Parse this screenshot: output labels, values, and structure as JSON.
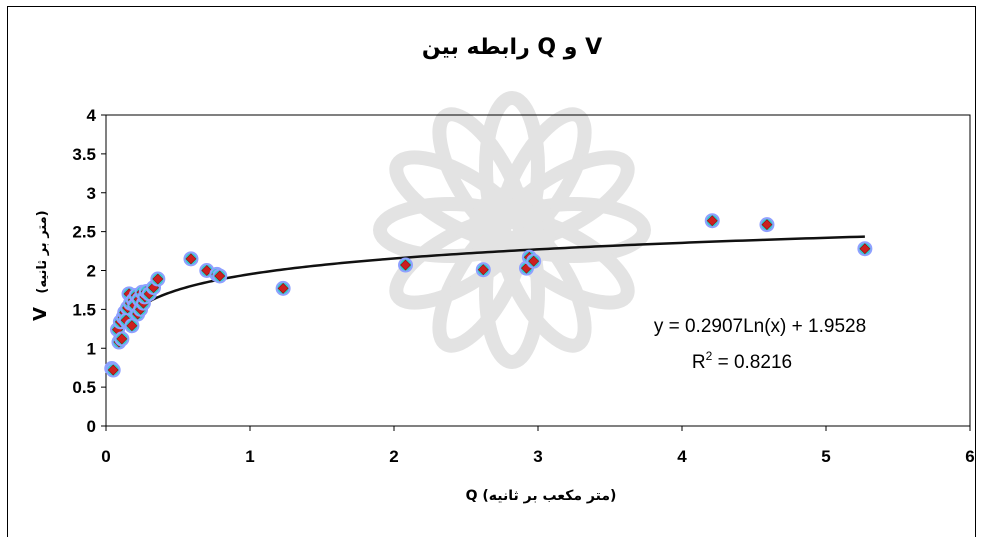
{
  "chart_data": {
    "type": "scatter",
    "title": "رابطه بین  Q و V",
    "xlabel": "Q (متر مکعب بر ثانیه)",
    "ylabel_main": "V",
    "ylabel_unit": "(متر بر ثانیه)",
    "xlim": [
      0,
      6
    ],
    "ylim": [
      0,
      4
    ],
    "x_ticks": [
      "0",
      "1",
      "2",
      "3",
      "4",
      "5",
      "6"
    ],
    "y_ticks": [
      "0",
      "0.5",
      "1",
      "1.5",
      "2",
      "2.5",
      "3",
      "3.5",
      "4"
    ],
    "grid": false,
    "legend": "none",
    "points": [
      {
        "x": 0.04,
        "y": 0.74
      },
      {
        "x": 0.05,
        "y": 0.72
      },
      {
        "x": 0.08,
        "y": 1.24
      },
      {
        "x": 0.09,
        "y": 1.08
      },
      {
        "x": 0.1,
        "y": 1.34
      },
      {
        "x": 0.11,
        "y": 1.12
      },
      {
        "x": 0.12,
        "y": 1.4
      },
      {
        "x": 0.13,
        "y": 1.46
      },
      {
        "x": 0.14,
        "y": 1.36
      },
      {
        "x": 0.15,
        "y": 1.52
      },
      {
        "x": 0.16,
        "y": 1.7
      },
      {
        "x": 0.17,
        "y": 1.58
      },
      {
        "x": 0.18,
        "y": 1.29
      },
      {
        "x": 0.19,
        "y": 1.62
      },
      {
        "x": 0.2,
        "y": 1.55
      },
      {
        "x": 0.21,
        "y": 1.68
      },
      {
        "x": 0.22,
        "y": 1.44
      },
      {
        "x": 0.23,
        "y": 1.63
      },
      {
        "x": 0.24,
        "y": 1.5
      },
      {
        "x": 0.25,
        "y": 1.72
      },
      {
        "x": 0.26,
        "y": 1.58
      },
      {
        "x": 0.27,
        "y": 1.66
      },
      {
        "x": 0.28,
        "y": 1.73
      },
      {
        "x": 0.3,
        "y": 1.7
      },
      {
        "x": 0.33,
        "y": 1.78
      },
      {
        "x": 0.36,
        "y": 1.89
      },
      {
        "x": 0.59,
        "y": 2.15
      },
      {
        "x": 0.7,
        "y": 2.0
      },
      {
        "x": 0.77,
        "y": 1.95
      },
      {
        "x": 0.79,
        "y": 1.93
      },
      {
        "x": 1.23,
        "y": 1.77
      },
      {
        "x": 2.08,
        "y": 2.07
      },
      {
        "x": 2.62,
        "y": 2.01
      },
      {
        "x": 2.92,
        "y": 2.03
      },
      {
        "x": 2.94,
        "y": 2.17
      },
      {
        "x": 2.97,
        "y": 2.12
      },
      {
        "x": 4.21,
        "y": 2.64
      },
      {
        "x": 4.59,
        "y": 2.59
      },
      {
        "x": 5.27,
        "y": 2.28
      }
    ],
    "trendline": {
      "type": "logarithmic",
      "a": 0.2907,
      "b": 1.9528,
      "x_range": [
        0.06,
        5.27
      ],
      "equation_label": "y = 0.2907Ln(x) + 1.9528",
      "r2_label_prefix": "R",
      "r2_label_sup": "2",
      "r2_label_value": " = 0.8216"
    },
    "colors": {
      "marker_fill": "#cc1f1f",
      "marker_halo": "#8fa0ff",
      "marker_halo_inner": "#33cccc",
      "trendline": "#111111",
      "axis": "#000000",
      "watermark": "#e3e3e3"
    }
  }
}
